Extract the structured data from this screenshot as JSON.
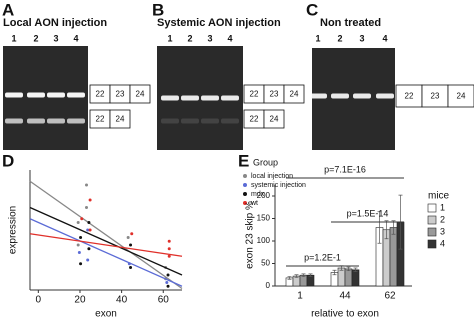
{
  "gels": [
    {
      "letter": "A",
      "title": "Local AON injection",
      "lanes": [
        "1",
        "2",
        "3",
        "4"
      ],
      "products": [
        [
          "22",
          "23",
          "24"
        ],
        [
          "22",
          "24"
        ]
      ]
    },
    {
      "letter": "B",
      "title": "Systemic AON injection",
      "lanes": [
        "1",
        "2",
        "3",
        "4"
      ],
      "products": [
        [
          "22",
          "23",
          "24"
        ],
        [
          "22",
          "24"
        ]
      ]
    },
    {
      "letter": "C",
      "title": "Non treated",
      "lanes": [
        "1",
        "2",
        "3",
        "4"
      ],
      "products": [
        [
          "22",
          "23",
          "24"
        ]
      ]
    }
  ],
  "chart_data": [
    {
      "type": "scatter",
      "letter": "D",
      "xlabel": "exon",
      "ylabel": "expression",
      "xlim": [
        -4,
        69
      ],
      "xticks": [
        0,
        20,
        40,
        60
      ],
      "ylim": [
        0,
        1.6
      ],
      "legend_title": "Group",
      "legend": "upper right",
      "series": [
        {
          "name": "local injection",
          "color": "#888888",
          "x": [
            20,
            20,
            24,
            24,
            44,
            62,
            62
          ],
          "values": [
            0.9,
            0.6,
            1.4,
            1.1,
            0.7,
            0.3,
            0.15
          ],
          "fit_x": [
            -4,
            69
          ],
          "fit_values": [
            1.45,
            0.02
          ]
        },
        {
          "name": "systemic injection",
          "color": "#5b6bd6",
          "x": [
            20,
            24,
            24,
            44,
            62
          ],
          "values": [
            0.5,
            0.8,
            0.4,
            0.35,
            0.1
          ],
          "fit_x": [
            -4,
            69
          ],
          "fit_values": [
            0.95,
            0.05
          ]
        },
        {
          "name": "mdx",
          "color": "#111111",
          "x": [
            20,
            20,
            24,
            24,
            44,
            44,
            62,
            62
          ],
          "values": [
            0.7,
            0.35,
            0.9,
            0.55,
            0.6,
            0.3,
            0.2,
            0.05
          ],
          "fit_x": [
            -4,
            69
          ],
          "fit_values": [
            1.1,
            0.2
          ]
        },
        {
          "name": "wt",
          "color": "#e0302a",
          "x": [
            20,
            24,
            24,
            44,
            62,
            62,
            62
          ],
          "values": [
            0.95,
            1.2,
            0.8,
            0.75,
            0.65,
            0.55,
            0.45
          ],
          "fit_x": [
            -4,
            69
          ],
          "fit_values": [
            0.75,
            0.45
          ]
        }
      ]
    },
    {
      "type": "bar",
      "letter": "E",
      "xlabel": "relative to exon",
      "ylabel": "exon 23 skip %",
      "categories": [
        "1",
        "44",
        "62"
      ],
      "ylim": [
        0,
        225
      ],
      "yticks": [
        0,
        50,
        100,
        150,
        200
      ],
      "legend_title": "mice",
      "legend": "right",
      "series": [
        {
          "name": "1",
          "color": "#ffffff",
          "values": [
            18,
            30,
            130
          ],
          "errors": [
            3,
            5,
            35
          ]
        },
        {
          "name": "2",
          "color": "#cccccc",
          "values": [
            22,
            40,
            125
          ],
          "errors": [
            3,
            5,
            20
          ]
        },
        {
          "name": "3",
          "color": "#999999",
          "values": [
            24,
            38,
            130
          ],
          "errors": [
            3,
            4,
            15
          ]
        },
        {
          "name": "4",
          "color": "#333333",
          "values": [
            24,
            36,
            142
          ],
          "errors": [
            3,
            4,
            60
          ]
        }
      ],
      "annotations": [
        {
          "text": "p=1.2E-1",
          "from": 0,
          "to": 1
        },
        {
          "text": "p=1.5E-14",
          "from": 1,
          "to": 2
        },
        {
          "text": "p=7.1E-16",
          "from": 0,
          "to": 2
        }
      ]
    }
  ]
}
